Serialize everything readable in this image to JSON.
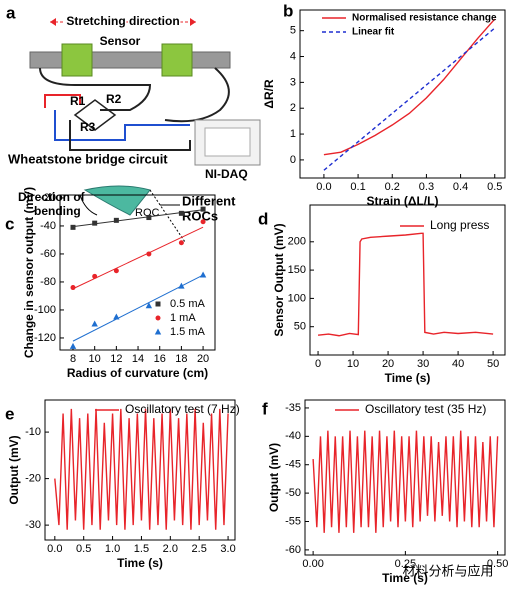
{
  "diagram": {
    "panel": "a",
    "stretching_direction": "Stretching direction",
    "sensor": "Sensor",
    "r1": "R1",
    "r2": "R2",
    "r3": "R3",
    "bridge": "Wheatstone bridge circuit",
    "daq": "NI-DAQ"
  },
  "inset": {
    "direction": [
      "Direction of",
      "bending"
    ],
    "roc": "ROC",
    "different_rocs": [
      "Different",
      "ROCs"
    ]
  },
  "watermark": "材料分析与应用",
  "chart_data": [
    {
      "type": "line",
      "panel": "b",
      "x_label": "Strain (ΔL/L)",
      "y_label": "ΔR/R",
      "x": [
        0,
        0.05,
        0.1,
        0.15,
        0.2,
        0.25,
        0.3,
        0.35,
        0.4,
        0.45,
        0.5
      ],
      "series": [
        {
          "name": "Normalised resistance change",
          "color": "#e8242a",
          "values": [
            0.2,
            0.3,
            0.6,
            0.95,
            1.35,
            1.8,
            2.4,
            3.1,
            3.9,
            4.7,
            5.45
          ]
        },
        {
          "name": "Linear fit",
          "color": "#1f2fd0",
          "dash": true,
          "values": [
            -0.4,
            0.15,
            0.7,
            1.25,
            1.8,
            2.35,
            2.9,
            3.45,
            4.0,
            4.55,
            5.1
          ]
        }
      ],
      "xlim": [
        -0.07,
        0.53
      ],
      "ylim": [
        -0.7,
        5.8
      ],
      "xticks": [
        {
          "value": 0,
          "label": "0.0"
        },
        0.1,
        0.2,
        0.3,
        0.4,
        0.5
      ],
      "yticks": [
        0,
        1,
        2,
        3,
        4,
        5
      ]
    },
    {
      "type": "scatter",
      "panel": "c",
      "x_label": "Radius of curvature (cm)",
      "y_label": "Change in sensor output (mV)",
      "fit": true,
      "x": [
        8,
        10,
        12,
        15,
        18,
        20
      ],
      "series": [
        {
          "name": "0.5 mA",
          "color": "#333333",
          "marker": "square",
          "values": [
            -41,
            -38,
            -36,
            -34,
            -31,
            -28
          ]
        },
        {
          "name": "1 mA",
          "color": "#e8242a",
          "marker": "circle",
          "values": [
            -84,
            -76,
            -72,
            -60,
            -52,
            -37
          ]
        },
        {
          "name": "1.5 mA",
          "color": "#1f6fd0",
          "marker": "triangle",
          "values": [
            -126,
            -110,
            -105,
            -97,
            -83,
            -75
          ]
        }
      ],
      "xlim": [
        6.8,
        21.1
      ],
      "ylim": [
        -128.6,
        -17.9
      ],
      "xticks": [
        8,
        10,
        12,
        14,
        16,
        18,
        20
      ],
      "yticks": [
        -20,
        -40,
        -60,
        -80,
        -100,
        -120
      ]
    },
    {
      "type": "line",
      "panel": "d",
      "x_label": "Time (s)",
      "y_label": "Sensor Output (mV)",
      "x": [
        0,
        3,
        6,
        9,
        11.5,
        12,
        12.5,
        15,
        20,
        25,
        29.5,
        30,
        30.5,
        33,
        36,
        40,
        45,
        50
      ],
      "series": [
        {
          "name": "Long press",
          "color": "#e8242a",
          "values": [
            35,
            37,
            34,
            38,
            36,
            200,
            205,
            208,
            210,
            212,
            215,
            215,
            40,
            37,
            40,
            38,
            40,
            37
          ]
        }
      ],
      "xlim": [
        -2.3,
        53.4
      ],
      "ylim": [
        0,
        265
      ],
      "xticks": [
        0,
        10,
        20,
        30,
        40,
        50
      ],
      "yticks": [
        50,
        100,
        150,
        200
      ]
    },
    {
      "type": "line",
      "panel": "e",
      "x_label": "Time (s)",
      "y_label": "Output (mV)",
      "x": [
        0,
        0.071,
        0.143,
        0.214,
        0.286,
        0.357,
        0.429,
        0.5,
        0.571,
        0.643,
        0.714,
        0.786,
        0.857,
        0.929,
        1,
        1.071,
        1.143,
        1.214,
        1.286,
        1.357,
        1.429,
        1.5,
        1.571,
        1.643,
        1.714,
        1.786,
        1.857,
        1.929,
        2,
        2.071,
        2.143,
        2.214,
        2.286,
        2.357,
        2.429,
        2.5,
        2.571,
        2.643,
        2.714,
        2.786,
        2.857,
        2.929,
        3
      ],
      "series": [
        {
          "name": "Oscillatory test (7 Hz)",
          "color": "#e8242a",
          "values": [
            -20,
            -30,
            -6,
            -31,
            -5,
            -29,
            -7,
            -31,
            -6,
            -30,
            -5,
            -31,
            -8,
            -29,
            -6,
            -30,
            -5,
            -31,
            -7,
            -30,
            -6,
            -29,
            -5,
            -31,
            -7,
            -30,
            -6,
            -31,
            -5,
            -29,
            -7,
            -30,
            -6,
            -31,
            -5,
            -30,
            -8,
            -29,
            -6,
            -31,
            -5,
            -30,
            -6
          ]
        }
      ],
      "xlim": [
        -0.17,
        3.12
      ],
      "ylim": [
        -33.2,
        -3.1
      ],
      "xticks": [
        {
          "value": 0,
          "label": "0.0"
        },
        0.5,
        {
          "value": 1,
          "label": "1.0"
        },
        1.5,
        {
          "value": 2,
          "label": "2.0"
        },
        2.5,
        {
          "value": 3,
          "label": "3.0"
        }
      ],
      "yticks": [
        -10,
        -20,
        -30
      ]
    },
    {
      "type": "line",
      "panel": "f",
      "x_label": "Time (s)",
      "y_label": "Output (mV)",
      "x": [
        0,
        0.01,
        0.02,
        0.03,
        0.04,
        0.05,
        0.06,
        0.07,
        0.08,
        0.09,
        0.1,
        0.11,
        0.12,
        0.13,
        0.14,
        0.15,
        0.16,
        0.17,
        0.18,
        0.19,
        0.2,
        0.21,
        0.22,
        0.23,
        0.24,
        0.25,
        0.26,
        0.27,
        0.28,
        0.29,
        0.3,
        0.31,
        0.32,
        0.33,
        0.34,
        0.35,
        0.36,
        0.37,
        0.38,
        0.39,
        0.4,
        0.41,
        0.42,
        0.43,
        0.44,
        0.45,
        0.46,
        0.47,
        0.48,
        0.49,
        0.5
      ],
      "series": [
        {
          "name": "Oscillatory test (35 Hz)",
          "color": "#e8242a",
          "values": [
            -44,
            -56,
            -40,
            -57,
            -39,
            -56,
            -40,
            -57,
            -40,
            -56,
            -39,
            -57,
            -40,
            -56,
            -39,
            -56,
            -40,
            -57,
            -39,
            -56,
            -40,
            -55,
            -39,
            -56,
            -40,
            -55,
            -40,
            -56,
            -39,
            -55,
            -40,
            -54,
            -40,
            -55,
            -41,
            -54,
            -40,
            -55,
            -40,
            -56,
            -39,
            -55,
            -40,
            -56,
            -40,
            -56,
            -41,
            -55,
            -40,
            -56,
            -40
          ]
        }
      ],
      "xlim": [
        -0.022,
        0.52
      ],
      "ylim": [
        -60.9,
        -33.6
      ],
      "xticks": [
        {
          "value": 0,
          "label": "0.00"
        },
        0.25,
        {
          "value": 0.5,
          "label": "0.50"
        }
      ],
      "yticks": [
        -35,
        -40,
        -45,
        -50,
        -55,
        -60
      ]
    }
  ]
}
